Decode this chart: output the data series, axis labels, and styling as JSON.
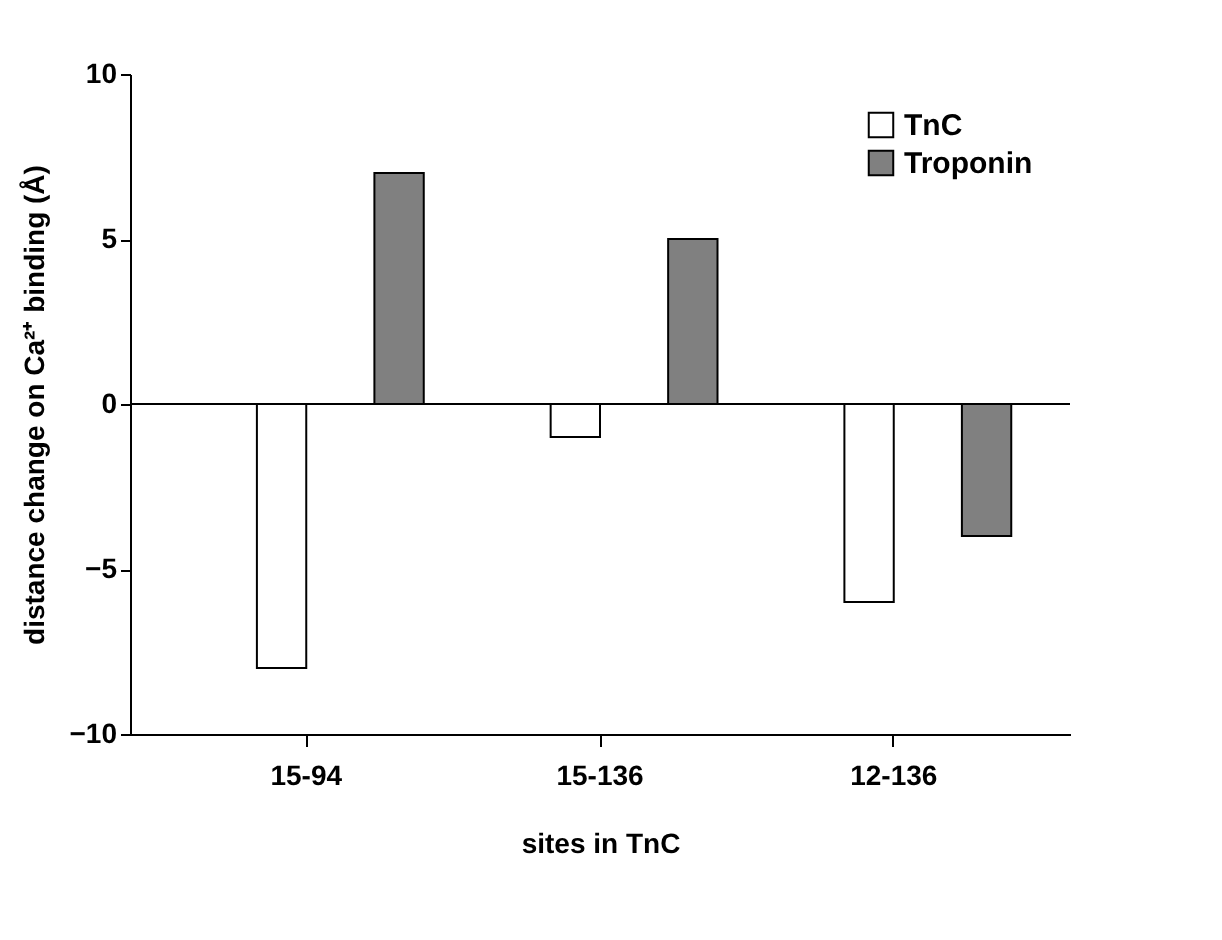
{
  "chart_data": {
    "type": "bar",
    "xlabel": "sites in TnC",
    "ylabel": "distance change on Ca²⁺ binding (Å)",
    "categories": [
      "15-94",
      "15-136",
      "12-136"
    ],
    "series": [
      {
        "name": "TnC",
        "color": "#ffffff",
        "values": [
          -8,
          -1,
          -6
        ]
      },
      {
        "name": "Troponin",
        "color": "#808080",
        "values": [
          7,
          5,
          -4
        ]
      }
    ],
    "ref_lines": [
      {
        "axis": "y",
        "value": 0
      }
    ],
    "ylim": [
      -10,
      10
    ],
    "yticks": [
      -10,
      -5,
      0,
      5,
      10
    ],
    "grid": false,
    "legend": "top right"
  }
}
